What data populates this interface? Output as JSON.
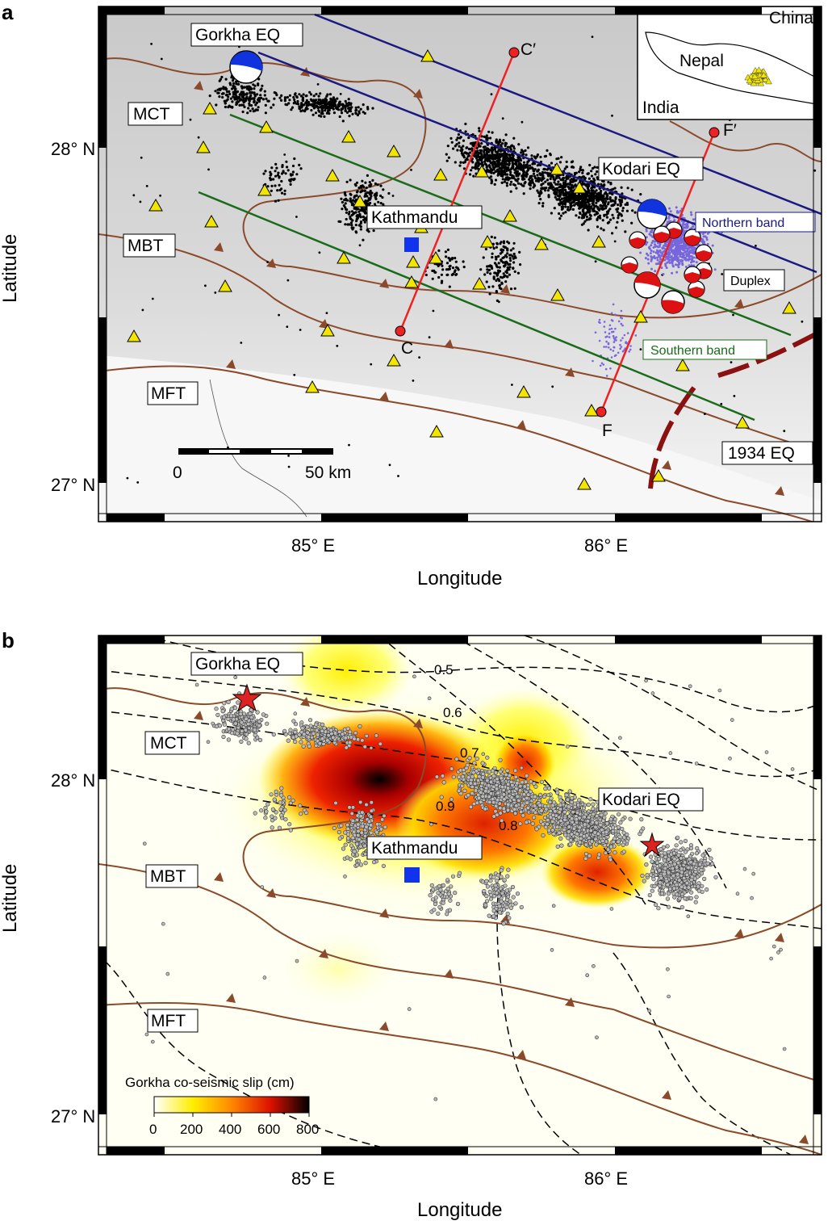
{
  "panel_a": {
    "letter": "a",
    "xlabel": "Longitude",
    "ylabel": "Latitude",
    "x_ticks": [
      "85° E",
      "86° E"
    ],
    "y_ticks": [
      "28° N",
      "27° N"
    ],
    "labels": {
      "gorkha": "Gorkha EQ",
      "mct": "MCT",
      "mbt": "MBT",
      "mft": "MFT",
      "kathmandu": "Kathmandu",
      "kodari": "Kodari EQ",
      "northern_band": "Northern band",
      "southern_band": "Southern band",
      "duplex": "Duplex",
      "eq1934": "1934 EQ",
      "c": "C",
      "c_prime": "C′",
      "f": "F",
      "f_prime": "F′"
    },
    "scalebar": {
      "start": "0",
      "end": "50 km"
    },
    "inset": {
      "china": "China",
      "nepal": "Nepal",
      "india": "India"
    },
    "colors": {
      "northern_band": "#1a1a80",
      "southern_band": "#1a6b1a",
      "fault": "#8b4a2b",
      "profile": "#ee2222",
      "station": "#f2e600",
      "aftershock": "#000000",
      "kodari_aftershock": "#7766dd",
      "eq1934_rupture": "#8b1010"
    }
  },
  "panel_b": {
    "letter": "b",
    "xlabel": "Longitude",
    "ylabel": "Latitude",
    "x_ticks": [
      "85° E",
      "86° E"
    ],
    "y_ticks": [
      "28° N",
      "27° N"
    ],
    "labels": {
      "gorkha": "Gorkha EQ",
      "mct": "MCT",
      "mbt": "MBT",
      "mft": "MFT",
      "kathmandu": "Kathmandu",
      "kodari": "Kodari EQ"
    },
    "contours": [
      "0.5",
      "0.6",
      "0.7",
      "0.8",
      "0.9"
    ],
    "colorbar": {
      "title": "Gorkha co-seismic slip (cm)",
      "ticks": [
        "0",
        "200",
        "400",
        "600",
        "800"
      ],
      "colors": [
        "#ffffff",
        "#ffee00",
        "#ff8800",
        "#dd1100",
        "#000000"
      ]
    }
  }
}
